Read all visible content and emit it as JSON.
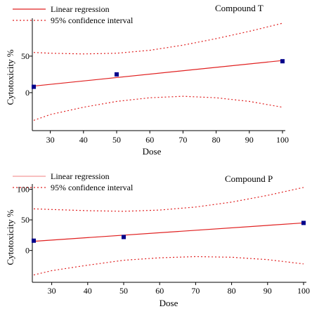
{
  "chart_data": [
    {
      "type": "scatter",
      "title": "Compound T",
      "xlabel": "Dose",
      "ylabel": "Cytotoxicity %",
      "xlim": [
        25,
        100
      ],
      "ylim": [
        -52,
        98
      ],
      "xticks": [
        30,
        40,
        50,
        60,
        70,
        80,
        90,
        100
      ],
      "yticks": [
        0,
        50
      ],
      "legend_position": "top-left",
      "points": [
        {
          "x": 25,
          "y": 8
        },
        {
          "x": 50,
          "y": 25
        },
        {
          "x": 100,
          "y": 43
        }
      ],
      "regression": {
        "name": "Linear regression",
        "x": [
          25,
          100
        ],
        "y": [
          9,
          44
        ],
        "color": "#e02020"
      },
      "confidence": {
        "name": "95% confidence interval",
        "color": "#e02020",
        "upper": {
          "x": [
            25,
            30,
            40,
            50,
            60,
            70,
            80,
            90,
            100
          ],
          "y": [
            55,
            54,
            53,
            54,
            58,
            65,
            74,
            84,
            95
          ]
        },
        "lower": {
          "x": [
            25,
            30,
            40,
            50,
            60,
            70,
            80,
            90,
            100
          ],
          "y": [
            -38,
            -30,
            -20,
            -12,
            -7,
            -5,
            -7,
            -12,
            -20
          ]
        }
      },
      "point_color": "#00008b"
    },
    {
      "type": "scatter",
      "title": "Compound P",
      "xlabel": "Dose",
      "ylabel": "Cytotoxicity %",
      "xlim": [
        25,
        100
      ],
      "ylim": [
        -52,
        104
      ],
      "xticks": [
        30,
        40,
        50,
        60,
        70,
        80,
        90,
        100
      ],
      "yticks": [
        0,
        50,
        100
      ],
      "legend_position": "top-left",
      "points": [
        {
          "x": 25,
          "y": 16
        },
        {
          "x": 50,
          "y": 22
        },
        {
          "x": 100,
          "y": 45
        }
      ],
      "regression": {
        "name": "Linear regression",
        "x": [
          25,
          100
        ],
        "y": [
          15,
          45
        ],
        "color": "#e02020"
      },
      "confidence": {
        "name": "95% confidence interval",
        "color": "#e02020",
        "upper": {
          "x": [
            25,
            30,
            40,
            50,
            60,
            70,
            80,
            90,
            100
          ],
          "y": [
            68,
            67,
            65,
            64,
            66,
            71,
            79,
            90,
            103
          ]
        },
        "lower": {
          "x": [
            25,
            30,
            40,
            50,
            60,
            70,
            80,
            90,
            100
          ],
          "y": [
            -40,
            -33,
            -24,
            -16,
            -12,
            -10,
            -11,
            -15,
            -22
          ]
        }
      },
      "point_color": "#00008b"
    }
  ]
}
